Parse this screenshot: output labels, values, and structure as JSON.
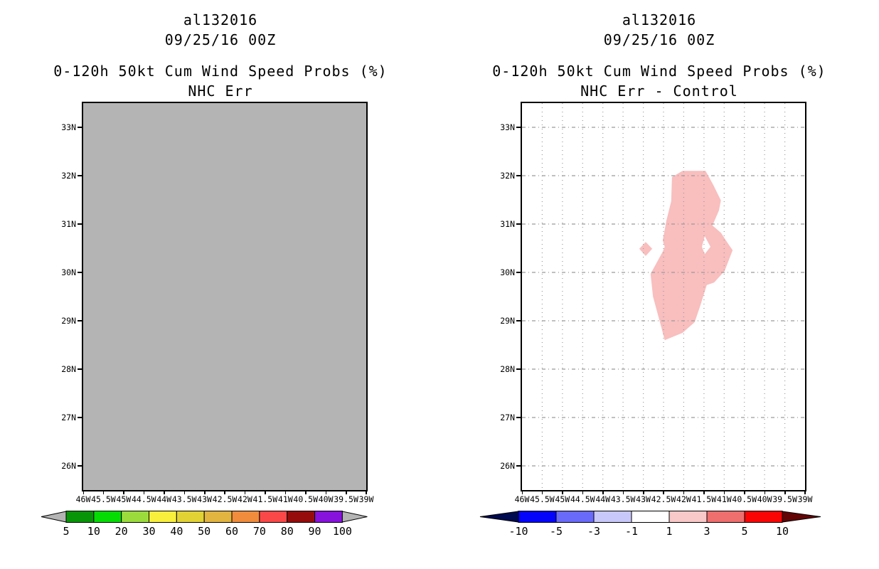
{
  "panels": [
    {
      "id": "nhc-err",
      "title_line1": "al132016",
      "title_line2": "09/25/16 00Z",
      "title_line3": "0-120h 50kt Cum Wind Speed Probs (%)",
      "title_line4": "NHC Err",
      "map_fill": "#b4b4b4",
      "colorbar": {
        "labels": [
          "5",
          "10",
          "20",
          "30",
          "40",
          "50",
          "60",
          "70",
          "80",
          "90",
          "100"
        ],
        "segment_colors": [
          "#089608",
          "#04DC04",
          "#9BDC3C",
          "#F8EE3C",
          "#E2D234",
          "#E2B440",
          "#F08C3C",
          "#FA4848",
          "#960C0C",
          "#8712DC"
        ],
        "left_arrow_color": "#b4b4b4",
        "right_arrow_color": "#b4b4b4"
      }
    },
    {
      "id": "nhc-err-minus-control",
      "title_line1": "al132016",
      "title_line2": "09/25/16 00Z",
      "title_line3": "0-120h 50kt Cum Wind Speed Probs (%)",
      "title_line4": "NHC Err - Control",
      "map_fill": "#ffffff",
      "colorbar": {
        "labels": [
          "-10",
          "-5",
          "-3",
          "-1",
          "1",
          "3",
          "5",
          "10"
        ],
        "segment_colors": [
          "#0404FA",
          "#6A6AFA",
          "#C8C8FA",
          "#FFFFFF",
          "#F9C8C8",
          "#EF6E6E",
          "#FA0404"
        ],
        "left_arrow_color": "#000A50",
        "right_arrow_color": "#640404"
      }
    }
  ],
  "axes": {
    "lat_labels": [
      "33N",
      "32N",
      "31N",
      "30N",
      "29N",
      "28N",
      "27N",
      "26N"
    ],
    "lon_labels": [
      "46W",
      "45.5W",
      "45W",
      "44.5W",
      "44W",
      "43.5W",
      "43W",
      "42.5W",
      "42W",
      "41.5W",
      "41W",
      "40.5W",
      "40W",
      "39.5W",
      "39W"
    ],
    "grid_color": "#9a9a9a"
  },
  "chart_data": [
    {
      "type": "heatmap",
      "panel": "left",
      "title": "al132016",
      "init_time": "09/25/16 00Z",
      "variable": "0-120h 50kt Cum Wind Speed Probs (%)",
      "model_label": "NHC Err",
      "lon_axis_deg_west": {
        "min": 39,
        "max": 46,
        "tick_interval": 0.5
      },
      "lat_axis_deg_north": {
        "min": 25.5,
        "max": 33.5,
        "tick_interval": 1
      },
      "levels": [
        5,
        10,
        20,
        30,
        40,
        50,
        60,
        70,
        80,
        90,
        100
      ],
      "level_colors": [
        "#089608",
        "#04DC04",
        "#9BDC3C",
        "#F8EE3C",
        "#E2D234",
        "#E2B440",
        "#F08C3C",
        "#FA4848",
        "#960C0C",
        "#8712DC"
      ],
      "below_min_color": "#b4b4b4",
      "above_max_color": "#b4b4b4",
      "field_summary": "entire domain uniformly shaded gray (values below lowest contour level 5%)"
    },
    {
      "type": "heatmap",
      "panel": "right",
      "title": "al132016",
      "init_time": "09/25/16 00Z",
      "variable": "0-120h 50kt Cum Wind Speed Probs (%)",
      "model_label": "NHC Err - Control",
      "lon_axis_deg_west": {
        "min": 39,
        "max": 46,
        "tick_interval": 0.5
      },
      "lat_axis_deg_north": {
        "min": 25.5,
        "max": 33.5,
        "tick_interval": 1
      },
      "levels": [
        -10,
        -5,
        -3,
        -1,
        1,
        3,
        5,
        10
      ],
      "level_colors": [
        "#0404FA",
        "#6A6AFA",
        "#C8C8FA",
        "#FFFFFF",
        "#F9C8C8",
        "#EF6E6E",
        "#FA0404"
      ],
      "below_min_color": "#000A50",
      "above_max_color": "#640404",
      "grid": {
        "lon_spacing_deg": 0.5,
        "lat_spacing_deg": 1,
        "style": "dotted",
        "color": "#9a9a9a"
      },
      "regions": [
        {
          "name": "main-anomaly",
          "value_range": "1 to 3",
          "color": "#f9bebe",
          "points_lon_lat": [
            [
              42.03,
              32.1
            ],
            [
              41.46,
              32.1
            ],
            [
              41.27,
              31.81
            ],
            [
              41.08,
              31.49
            ],
            [
              41.13,
              31.28
            ],
            [
              41.29,
              30.97
            ],
            [
              41.08,
              30.82
            ],
            [
              40.9,
              30.59
            ],
            [
              40.79,
              30.46
            ],
            [
              40.99,
              30.03
            ],
            [
              41.25,
              29.79
            ],
            [
              41.43,
              29.74
            ],
            [
              41.6,
              29.29
            ],
            [
              41.73,
              28.97
            ],
            [
              42.03,
              28.75
            ],
            [
              42.47,
              28.6
            ],
            [
              42.55,
              28.85
            ],
            [
              42.76,
              29.5
            ],
            [
              42.82,
              29.97
            ],
            [
              42.52,
              30.43
            ],
            [
              42.47,
              30.53
            ],
            [
              42.52,
              30.66
            ],
            [
              42.43,
              31.07
            ],
            [
              42.31,
              31.47
            ],
            [
              42.29,
              31.97
            ]
          ]
        },
        {
          "name": "inner-hole",
          "value_range": "below 1",
          "color": "#ffffff",
          "points_lon_lat": [
            [
              41.48,
              30.75
            ],
            [
              41.34,
              30.53
            ],
            [
              41.48,
              30.38
            ],
            [
              41.55,
              30.53
            ]
          ]
        },
        {
          "name": "small-anomaly",
          "value_range": "1 to 3",
          "color": "#f9bebe",
          "points_lon_lat": [
            [
              42.94,
              30.63
            ],
            [
              42.78,
              30.49
            ],
            [
              42.94,
              30.34
            ],
            [
              43.1,
              30.49
            ]
          ]
        }
      ]
    }
  ]
}
